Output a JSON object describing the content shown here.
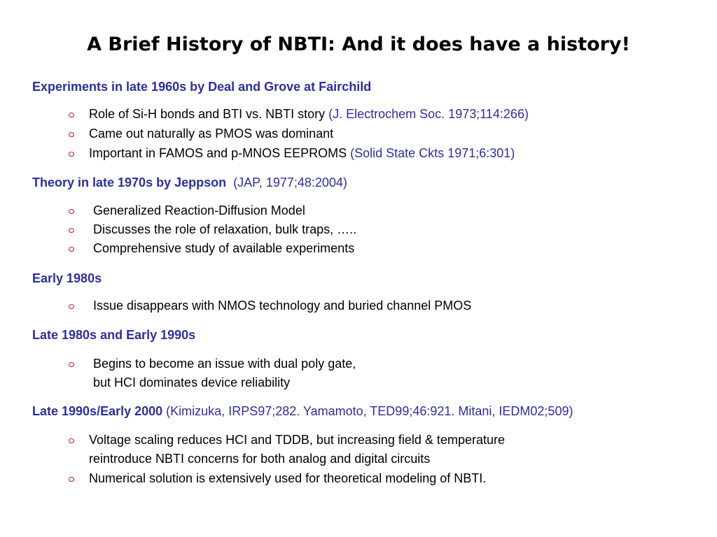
{
  "title": "A Brief History of NBTI: And it does have a history!",
  "sections": [
    {
      "heading": "Experiments in late 1960s by  Deal and Grove at Fairchild",
      "heading_ref": "",
      "bullets": [
        {
          "text": "Role of Si-H bonds and BTI vs. NBTI story ",
          "ref": "(J. Electrochem Soc. 1973;114:266)"
        },
        {
          "text": "Came out naturally as PMOS was dominant",
          "ref": ""
        },
        {
          "text": "Important in FAMOS and p-MNOS EEPROMS ",
          "ref": "(Solid State Ckts 1971;6:301)"
        }
      ]
    },
    {
      "heading": "Theory in late 1970s by Jeppson",
      "heading_ref": "(JAP, 1977;48:2004)",
      "bullets": [
        {
          "text": "Generalized Reaction-Diffusion Model",
          "ref": ""
        },
        {
          "text": "Discusses the role of relaxation, bulk traps, …..",
          "ref": ""
        },
        {
          "text": "Comprehensive study of available experiments",
          "ref": ""
        }
      ]
    },
    {
      "heading": "Early 1980s",
      "heading_ref": "",
      "bullets": [
        {
          "text": "Issue disappears with NMOS technology and buried channel PMOS",
          "ref": ""
        }
      ]
    },
    {
      "heading": "Late 1980s and Early 1990s",
      "heading_ref": "",
      "bullets": [
        {
          "text": "Begins to become an issue with dual poly gate,",
          "ref": ""
        },
        {
          "text": "but HCI dominates device reliability",
          "ref": ""
        }
      ]
    },
    {
      "heading": "Late 1990s/Early 2000",
      "heading_ref": "(Kimizuka, IRPS97;282. Yamamoto, TED99;46:921. Mitani, IEDM02;509)",
      "bullets": [
        {
          "text": "Voltage scaling reduces HCI and TDDB, but increasing field & temperature",
          "ref": ""
        },
        {
          "text": "reintroduce NBTI concerns for both analog and digital circuits",
          "ref": ""
        },
        {
          "text": "Numerical solution is extensively used for theoretical modeling of NBTI.",
          "ref": ""
        }
      ]
    }
  ],
  "colors": {
    "heading": "#2e2e9c",
    "reference": "#2e2e9c",
    "bullet_marker": "#c01818",
    "body_text": "#000000"
  }
}
